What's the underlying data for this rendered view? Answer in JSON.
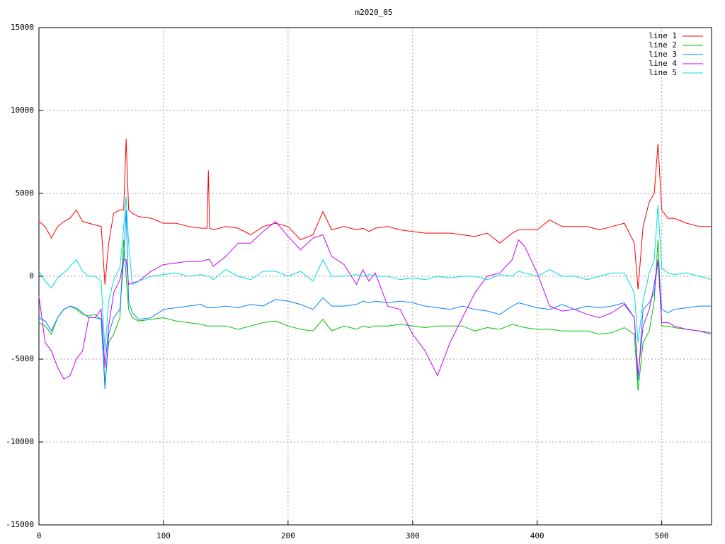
{
  "chart_data": {
    "type": "line",
    "title": "m2020_05",
    "x": [
      0,
      5,
      10,
      15,
      20,
      25,
      30,
      35,
      40,
      45,
      50,
      53,
      56,
      60,
      65,
      68,
      70,
      72,
      75,
      80,
      90,
      100,
      110,
      120,
      130,
      135,
      136,
      137,
      140,
      150,
      160,
      170,
      180,
      190,
      200,
      210,
      220,
      228,
      235,
      245,
      255,
      260,
      265,
      270,
      280,
      290,
      300,
      310,
      320,
      330,
      340,
      350,
      360,
      370,
      380,
      385,
      390,
      400,
      410,
      420,
      430,
      440,
      450,
      460,
      470,
      478,
      481,
      485,
      490,
      494,
      497,
      500,
      505,
      510,
      520,
      530,
      540
    ],
    "series": [
      {
        "name": "line 1",
        "color": "#ff0000",
        "values": [
          3300,
          3000,
          2300,
          3000,
          3300,
          3500,
          4000,
          3300,
          3200,
          3100,
          3000,
          -500,
          2000,
          3800,
          4000,
          4000,
          8300,
          4000,
          3800,
          3600,
          3500,
          3200,
          3200,
          3000,
          2900,
          2900,
          6400,
          2900,
          2800,
          3000,
          2900,
          2500,
          3000,
          3200,
          3000,
          2200,
          2500,
          3900,
          2800,
          3000,
          2800,
          2900,
          2700,
          2900,
          3000,
          2800,
          2700,
          2600,
          2600,
          2600,
          2500,
          2400,
          2600,
          2000,
          2600,
          2800,
          2800,
          2800,
          3400,
          3000,
          3000,
          3000,
          2800,
          3000,
          3200,
          2000,
          -800,
          3000,
          4500,
          5000,
          8000,
          4000,
          3500,
          3500,
          3200,
          3000,
          3000
        ]
      },
      {
        "name": "line 2",
        "color": "#00c000",
        "values": [
          -2800,
          -3000,
          -3500,
          -2500,
          -2000,
          -1800,
          -2000,
          -2300,
          -2400,
          -2300,
          -2600,
          -6500,
          -4000,
          -3500,
          -2500,
          2200,
          0,
          -2000,
          -2500,
          -2700,
          -2600,
          -2500,
          -2700,
          -2800,
          -2900,
          -3000,
          -3000,
          -3000,
          -3000,
          -3000,
          -3200,
          -3000,
          -2800,
          -2700,
          -3000,
          -3200,
          -3300,
          -2600,
          -3300,
          -3000,
          -3200,
          -3000,
          -3100,
          -3000,
          -3000,
          -2900,
          -3000,
          -3100,
          -3000,
          -3000,
          -3000,
          -3300,
          -3100,
          -3200,
          -2900,
          -3000,
          -3100,
          -3200,
          -3200,
          -3300,
          -3300,
          -3300,
          -3500,
          -3400,
          -3100,
          -3500,
          -6900,
          -4000,
          -3300,
          -1500,
          2200,
          -3000,
          -3000,
          -3100,
          -3200,
          -3300,
          -3400
        ]
      },
      {
        "name": "line 3",
        "color": "#0080ff",
        "values": [
          -2500,
          -2700,
          -3300,
          -2500,
          -2000,
          -1800,
          -1900,
          -2200,
          -2500,
          -2500,
          -2600,
          -6800,
          -3500,
          -2500,
          -2000,
          1000,
          4000,
          -1500,
          -2200,
          -2600,
          -2500,
          -2000,
          -1900,
          -1800,
          -1700,
          -1900,
          -1900,
          -1900,
          -1900,
          -1800,
          -1900,
          -1700,
          -1800,
          -1400,
          -1500,
          -1700,
          -2000,
          -1300,
          -1800,
          -1800,
          -1700,
          -1500,
          -1600,
          -1500,
          -1600,
          -1500,
          -1600,
          -1800,
          -1900,
          -2000,
          -1800,
          -2000,
          -2100,
          -2300,
          -1800,
          -1600,
          -1700,
          -1900,
          -2000,
          -1700,
          -2000,
          -1800,
          -1900,
          -1800,
          -1600,
          -2500,
          -6300,
          -2000,
          -1600,
          -1000,
          1000,
          -2000,
          -2200,
          -2000,
          -1900,
          -1800,
          -1800
        ]
      },
      {
        "name": "line 4",
        "color": "#c000ff",
        "values": [
          -1200,
          -4000,
          -4500,
          -5500,
          -6200,
          -6000,
          -5000,
          -4500,
          -2500,
          -2500,
          -2000,
          -5500,
          -3000,
          -1000,
          -200,
          1000,
          1000,
          -500,
          -400,
          -300,
          300,
          700,
          800,
          900,
          900,
          1000,
          1000,
          1000,
          600,
          1200,
          2000,
          2000,
          2700,
          3300,
          2400,
          1600,
          2300,
          2500,
          1200,
          700,
          -500,
          400,
          -300,
          200,
          -1800,
          -2000,
          -3500,
          -4500,
          -6000,
          -4000,
          -2500,
          -1000,
          0,
          200,
          1000,
          2200,
          1800,
          200,
          -1800,
          -2100,
          -2000,
          -2300,
          -2500,
          -2200,
          -1700,
          -2500,
          -6000,
          -3000,
          -2000,
          -500,
          1000,
          -2800,
          -2800,
          -3000,
          -3200,
          -3300,
          -3500
        ]
      },
      {
        "name": "line 5",
        "color": "#00dddd",
        "values": [
          300,
          -300,
          -700,
          -100,
          200,
          600,
          1000,
          300,
          0,
          0,
          -300,
          -4500,
          -1500,
          -200,
          500,
          3000,
          4800,
          2000,
          -500,
          -300,
          0,
          100,
          200,
          0,
          100,
          0,
          0,
          0,
          -200,
          400,
          0,
          -200,
          300,
          300,
          0,
          300,
          -300,
          1000,
          0,
          0,
          100,
          0,
          100,
          0,
          0,
          -200,
          -100,
          -200,
          0,
          -100,
          0,
          0,
          -200,
          100,
          0,
          300,
          200,
          0,
          400,
          0,
          0,
          -200,
          0,
          200,
          200,
          -1000,
          -4000,
          -1500,
          200,
          1000,
          4300,
          500,
          200,
          100,
          200,
          0,
          -200
        ]
      }
    ],
    "xlim": [
      0,
      540
    ],
    "xticks": [
      0,
      100,
      200,
      300,
      400,
      500
    ],
    "ylim": [
      -15000,
      15000
    ],
    "yticks": [
      -15000,
      -10000,
      -5000,
      0,
      5000,
      10000,
      15000
    ],
    "grid": true,
    "legend": "top-right"
  }
}
